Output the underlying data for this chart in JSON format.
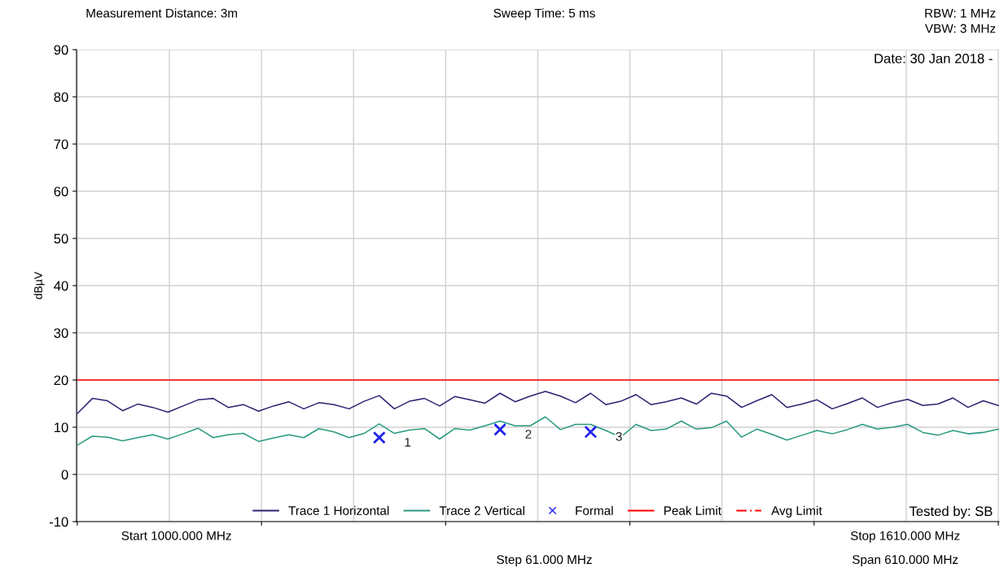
{
  "chart_data": {
    "type": "line",
    "ylabel": "dBµV",
    "annotations": [
      "Measurement Distance: 3m",
      "Sweep Time: 5 ms",
      "RBW: 1 MHz",
      "VBW: 3 MHz",
      "Date: 30 Jan 2018 -",
      "Tested by: SB",
      "Start 1000.000 MHz",
      "Stop 1610.000 MHz",
      "Step 61.000 MHz",
      "Span 610.000 MHz",
      "1",
      "2",
      "3"
    ],
    "categories": [
      null,
      null,
      null,
      null,
      null,
      null,
      null,
      null,
      null,
      null,
      null,
      null,
      null,
      null,
      null,
      null,
      null,
      null,
      null,
      null,
      null,
      null,
      null,
      null,
      null,
      null,
      null,
      null,
      null,
      null,
      null,
      null,
      null,
      null,
      null,
      null,
      null,
      null,
      null,
      null,
      null,
      null,
      null,
      null,
      null,
      null,
      null,
      null,
      null,
      null,
      null,
      null,
      null,
      null,
      null,
      null,
      null,
      null,
      null,
      null,
      null,
      null
    ],
    "ylim": [
      -10,
      90
    ],
    "yticks": [
      -10,
      0,
      10,
      20,
      30,
      40,
      50,
      60,
      70,
      80,
      90
    ],
    "grid": true,
    "legend": "bottom",
    "line_style": "solid",
    "marker": "none",
    "ref_lines": [
      {
        "axis": "y",
        "value": 20,
        "label": "Peak Limit",
        "color": "#ff0000"
      }
    ],
    "series": [
      {
        "name": "Trace 1 Horizontal",
        "color": "#2b2472",
        "values": [
          12.9,
          16.1,
          15.6,
          13.5,
          14.9,
          14.2,
          13.2,
          14.5,
          15.8,
          16.1,
          14.2,
          14.8,
          13.4,
          14.5,
          15.4,
          13.9,
          15.2,
          14.8,
          13.9,
          15.5,
          16.7,
          13.9,
          15.5,
          16.1,
          14.5,
          16.5,
          15.8,
          15.1,
          17.2,
          15.4,
          16.6,
          17.6,
          16.6,
          15.2,
          17.2,
          14.8,
          15.5,
          16.9,
          14.8,
          15.4,
          16.2,
          14.9,
          17.2,
          16.6,
          14.2,
          15.6,
          16.9,
          14.2,
          14.9,
          15.8,
          13.9,
          15.0,
          16.2,
          14.2,
          15.2,
          15.9,
          14.6,
          14.9,
          16.2,
          14.2,
          15.6,
          14.6
        ]
      },
      {
        "name": "Trace 2 Vertical",
        "color": "#2a9a80",
        "values": [
          6.2,
          8.1,
          7.9,
          7.1,
          7.8,
          8.4,
          7.5,
          8.6,
          9.8,
          7.8,
          8.4,
          8.7,
          7.0,
          7.7,
          8.4,
          7.8,
          9.7,
          9.0,
          7.8,
          8.7,
          10.7,
          8.7,
          9.4,
          9.7,
          7.5,
          9.7,
          9.4,
          10.3,
          11.3,
          10.3,
          10.3,
          12.2,
          9.5,
          10.6,
          10.6,
          9.3,
          7.9,
          10.6,
          9.3,
          9.6,
          11.3,
          9.6,
          9.9,
          11.3,
          7.9,
          9.6,
          8.5,
          7.3,
          8.3,
          9.3,
          8.6,
          9.5,
          10.6,
          9.6,
          10.0,
          10.6,
          8.9,
          8.3,
          9.3,
          8.6,
          8.9,
          9.6
        ]
      },
      {
        "name": "Formal",
        "type": "scatter",
        "marker": "cross",
        "color": "#2222ee",
        "values": [
          null,
          null,
          null,
          null,
          null,
          null,
          null,
          null,
          null,
          null,
          null,
          null,
          null,
          null,
          null,
          null,
          null,
          null,
          null,
          null,
          7.8,
          null,
          null,
          null,
          null,
          null,
          null,
          null,
          9.5,
          null,
          null,
          null,
          null,
          null,
          9.0,
          null,
          null,
          null,
          null,
          null,
          null,
          null,
          null,
          null,
          null,
          null,
          null,
          null,
          null,
          null,
          null,
          null,
          null,
          null,
          null,
          null,
          null,
          null,
          null,
          null,
          null,
          null
        ]
      },
      {
        "name": "Avg Limit",
        "color": "#ff0000",
        "line_style": "dashed",
        "values": [
          null,
          null,
          null,
          null,
          null,
          null,
          null,
          null,
          null,
          null,
          null,
          null,
          null,
          null,
          null,
          null,
          null,
          null,
          null,
          null,
          null,
          null,
          null,
          null,
          null,
          null,
          null,
          null,
          null,
          null,
          null,
          null,
          null,
          null,
          null,
          null,
          null,
          null,
          null,
          null,
          null,
          null,
          null,
          null,
          null,
          null,
          null,
          null,
          null,
          null,
          null,
          null,
          null,
          null,
          null,
          null,
          null,
          null,
          null,
          null,
          null,
          null
        ]
      }
    ]
  }
}
